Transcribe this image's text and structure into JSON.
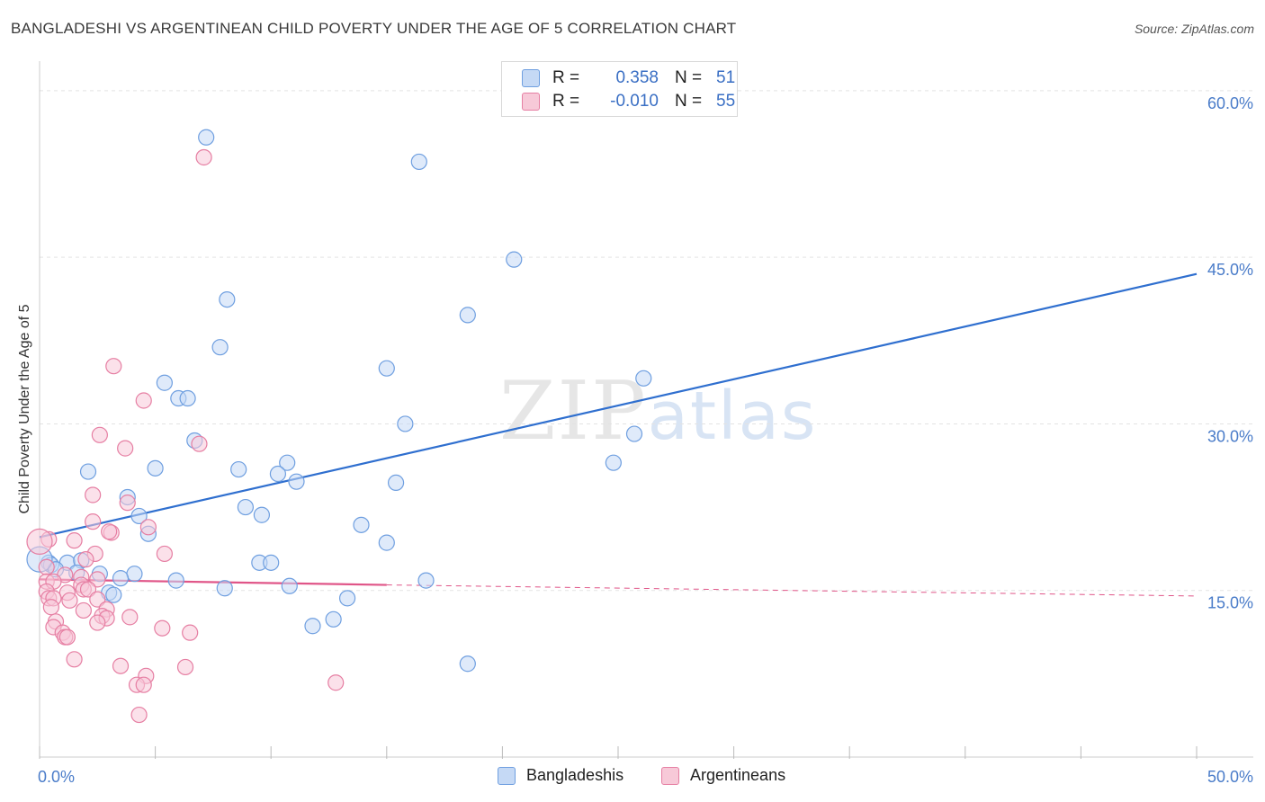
{
  "header": {
    "title": "BANGLADESHI VS ARGENTINEAN CHILD POVERTY UNDER THE AGE OF 5 CORRELATION CHART",
    "source": "Source: ZipAtlas.com"
  },
  "watermark": {
    "zip": "ZIP",
    "atlas": "atlas"
  },
  "legend": {
    "series1": {
      "r_label": "R =",
      "r_value": "0.358",
      "n_label": "N =",
      "n_value": "51"
    },
    "series2": {
      "r_label": "R =",
      "r_value": "-0.010",
      "n_label": "N =",
      "n_value": "55"
    },
    "bottom1": "Bangladeshis",
    "bottom2": "Argentineans"
  },
  "chart_data": {
    "type": "scatter",
    "xlabel": "",
    "ylabel": "Child Poverty Under the Age of 5",
    "xlim": [
      0,
      50
    ],
    "ylim": [
      0,
      62.5
    ],
    "x_tick_labels": {
      "min": "0.0%",
      "max": "50.0%"
    },
    "y_ticks": [
      15,
      30,
      45,
      60
    ],
    "y_tick_labels": [
      "15.0%",
      "30.0%",
      "45.0%",
      "60.0%"
    ],
    "grid": true,
    "legend_position": "top-center",
    "colors": {
      "blue": "#6f9fe0",
      "blue_fill": "#c5d9f5",
      "pink": "#e67fa3",
      "pink_fill": "#f7c9d8",
      "blue_line": "#2f6fcf",
      "pink_line": "#e05588",
      "tick_text": "#4a7cc9"
    },
    "series": [
      {
        "name": "Bangladeshis",
        "color": "#6f9fe0",
        "points": [
          [
            7.2,
            55.8
          ],
          [
            16.4,
            53.6
          ],
          [
            20.5,
            44.8
          ],
          [
            8.1,
            41.2
          ],
          [
            18.5,
            39.8
          ],
          [
            7.8,
            36.9
          ],
          [
            15.0,
            35.0
          ],
          [
            26.1,
            34.1
          ],
          [
            5.4,
            33.7
          ],
          [
            6.0,
            32.3
          ],
          [
            6.4,
            32.3
          ],
          [
            15.8,
            30.0
          ],
          [
            25.7,
            29.1
          ],
          [
            6.7,
            28.5
          ],
          [
            24.8,
            26.5
          ],
          [
            10.7,
            26.5
          ],
          [
            5.0,
            26.0
          ],
          [
            8.6,
            25.9
          ],
          [
            10.3,
            25.5
          ],
          [
            2.1,
            25.7
          ],
          [
            11.1,
            24.8
          ],
          [
            15.4,
            24.7
          ],
          [
            3.8,
            23.4
          ],
          [
            8.9,
            22.5
          ],
          [
            9.6,
            21.8
          ],
          [
            4.3,
            21.7
          ],
          [
            13.9,
            20.9
          ],
          [
            4.7,
            20.1
          ],
          [
            15.0,
            19.3
          ],
          [
            0.4,
            17.5
          ],
          [
            0.5,
            17.3
          ],
          [
            1.2,
            17.5
          ],
          [
            1.8,
            17.7
          ],
          [
            9.5,
            17.5
          ],
          [
            10.0,
            17.5
          ],
          [
            0.7,
            16.9
          ],
          [
            1.6,
            16.6
          ],
          [
            2.6,
            16.5
          ],
          [
            4.1,
            16.5
          ],
          [
            3.5,
            16.1
          ],
          [
            5.9,
            15.9
          ],
          [
            16.7,
            15.9
          ],
          [
            10.8,
            15.4
          ],
          [
            8.0,
            15.2
          ],
          [
            3.0,
            14.8
          ],
          [
            3.2,
            14.6
          ],
          [
            13.3,
            14.3
          ],
          [
            11.8,
            11.8
          ],
          [
            12.7,
            12.4
          ],
          [
            18.5,
            8.4
          ],
          [
            0.0,
            17.8
          ]
        ]
      },
      {
        "name": "Argentineans",
        "color": "#e67fa3",
        "points": [
          [
            7.1,
            54.0
          ],
          [
            3.2,
            35.2
          ],
          [
            4.5,
            32.1
          ],
          [
            2.6,
            29.0
          ],
          [
            3.7,
            27.8
          ],
          [
            6.9,
            28.2
          ],
          [
            2.3,
            23.6
          ],
          [
            3.8,
            22.9
          ],
          [
            2.3,
            21.2
          ],
          [
            4.7,
            20.7
          ],
          [
            3.1,
            20.2
          ],
          [
            3.0,
            20.3
          ],
          [
            0.4,
            19.6
          ],
          [
            0.0,
            19.4
          ],
          [
            1.5,
            19.5
          ],
          [
            5.4,
            18.3
          ],
          [
            2.4,
            18.3
          ],
          [
            0.3,
            17.1
          ],
          [
            2.0,
            17.8
          ],
          [
            1.1,
            16.4
          ],
          [
            1.8,
            16.2
          ],
          [
            2.5,
            16.0
          ],
          [
            0.3,
            15.8
          ],
          [
            0.6,
            15.8
          ],
          [
            1.8,
            15.5
          ],
          [
            1.9,
            15.1
          ],
          [
            2.1,
            15.1
          ],
          [
            0.3,
            14.9
          ],
          [
            1.2,
            14.8
          ],
          [
            0.4,
            14.3
          ],
          [
            0.6,
            14.3
          ],
          [
            2.5,
            14.2
          ],
          [
            1.3,
            14.1
          ],
          [
            0.5,
            13.5
          ],
          [
            1.9,
            13.2
          ],
          [
            2.9,
            13.3
          ],
          [
            2.7,
            12.7
          ],
          [
            2.9,
            12.5
          ],
          [
            3.9,
            12.6
          ],
          [
            0.7,
            12.2
          ],
          [
            2.5,
            12.1
          ],
          [
            0.6,
            11.7
          ],
          [
            5.3,
            11.6
          ],
          [
            1.0,
            11.2
          ],
          [
            6.5,
            11.2
          ],
          [
            1.1,
            10.8
          ],
          [
            1.2,
            10.8
          ],
          [
            1.5,
            8.8
          ],
          [
            3.5,
            8.2
          ],
          [
            6.3,
            8.1
          ],
          [
            4.6,
            7.3
          ],
          [
            4.2,
            6.5
          ],
          [
            4.5,
            6.5
          ],
          [
            12.8,
            6.7
          ],
          [
            4.3,
            3.8
          ]
        ]
      }
    ],
    "trendlines": [
      {
        "series": "Bangladeshis",
        "x": [
          0,
          50
        ],
        "y": [
          19.8,
          43.5
        ],
        "style": "solid"
      },
      {
        "series": "Argentineans",
        "x": [
          0,
          15
        ],
        "y": [
          16.0,
          15.5
        ],
        "style": "solid"
      },
      {
        "series": "Argentineans",
        "x": [
          15,
          50
        ],
        "y": [
          15.5,
          14.5
        ],
        "style": "dashed"
      }
    ]
  }
}
